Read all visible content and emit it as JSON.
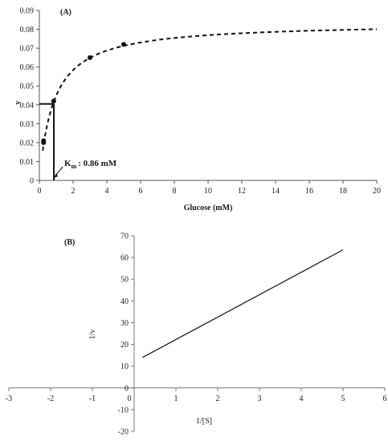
{
  "chart_data": [
    {
      "panel": "A",
      "type": "scatter",
      "title": "(A)",
      "xlabel": "Glucose (mM)",
      "ylabel": "v",
      "xlim": [
        0,
        20
      ],
      "ylim": [
        0,
        0.09
      ],
      "xticks": [
        0,
        2,
        4,
        6,
        8,
        10,
        12,
        14,
        16,
        18,
        20
      ],
      "yticks": [
        "0",
        "0.01",
        "0.02",
        "0.03",
        "0.04",
        "0.05",
        "0.06",
        "0.07",
        "0.08",
        "0.09"
      ],
      "points": [
        {
          "x": 0.25,
          "y": 0.02
        },
        {
          "x": 0.25,
          "y": 0.021
        },
        {
          "x": 0.85,
          "y": 0.042
        },
        {
          "x": 3.0,
          "y": 0.065
        },
        {
          "x": 5.0,
          "y": 0.072
        }
      ],
      "fit_curve": {
        "style": "dashed",
        "vmax": 0.0835,
        "km": 0.86,
        "x_range": [
          0.2,
          20
        ]
      },
      "km_marker": {
        "x": 0.86,
        "y": 0.0405
      },
      "annotation": {
        "main": "K",
        "sub": "m",
        "text": ": 0.86 mM"
      }
    },
    {
      "panel": "B",
      "type": "line",
      "title": "(B)",
      "xlabel": "1/[S]",
      "ylabel": "1/v",
      "xlim": [
        -3,
        6
      ],
      "ylim": [
        -20,
        70
      ],
      "xticks": [
        -3,
        -2,
        -1,
        0,
        1,
        2,
        3,
        4,
        5,
        6
      ],
      "yticks": [
        -20,
        -10,
        0,
        10,
        20,
        30,
        40,
        50,
        60,
        70
      ],
      "series": [
        {
          "x": [
            0.2,
            5.0
          ],
          "y": [
            14,
            63.5
          ]
        }
      ]
    }
  ]
}
